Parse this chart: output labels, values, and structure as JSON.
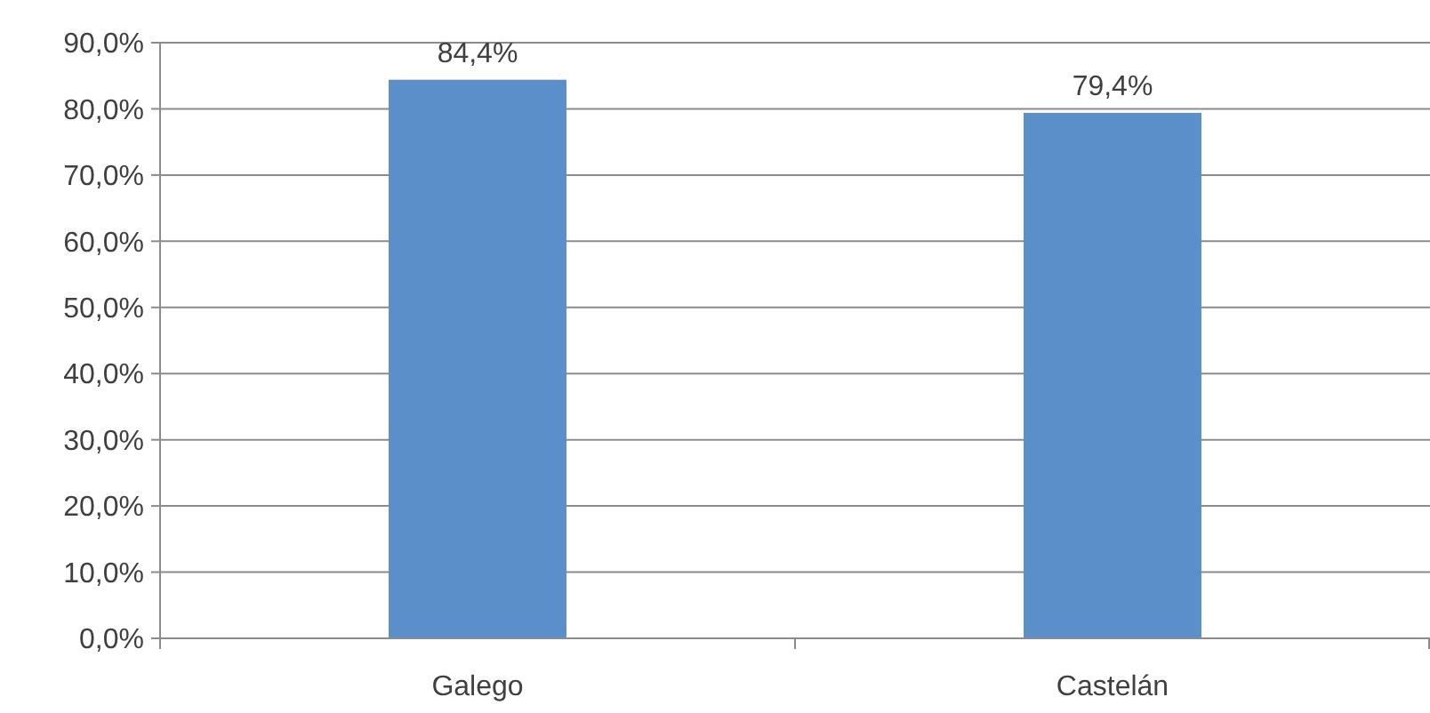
{
  "chart_data": {
    "type": "bar",
    "categories": [
      "Galego",
      "Castelán"
    ],
    "values": [
      84.4,
      79.4
    ],
    "color": "#5b8fc9",
    "value_labels": [
      "84,4%",
      "79,4%"
    ],
    "ylim": [
      0,
      90
    ],
    "yticks": [
      {
        "value": 0,
        "label": "0,0%"
      },
      {
        "value": 10,
        "label": "10,0%"
      },
      {
        "value": 20,
        "label": "20,0%"
      },
      {
        "value": 30,
        "label": "30,0%"
      },
      {
        "value": 40,
        "label": "40,0%"
      },
      {
        "value": 50,
        "label": "50,0%"
      },
      {
        "value": 60,
        "label": "60,0%"
      },
      {
        "value": 70,
        "label": "70,0%"
      },
      {
        "value": 80,
        "label": "80,0%"
      },
      {
        "value": 90,
        "label": "90,0%"
      }
    ],
    "grid": "y"
  }
}
